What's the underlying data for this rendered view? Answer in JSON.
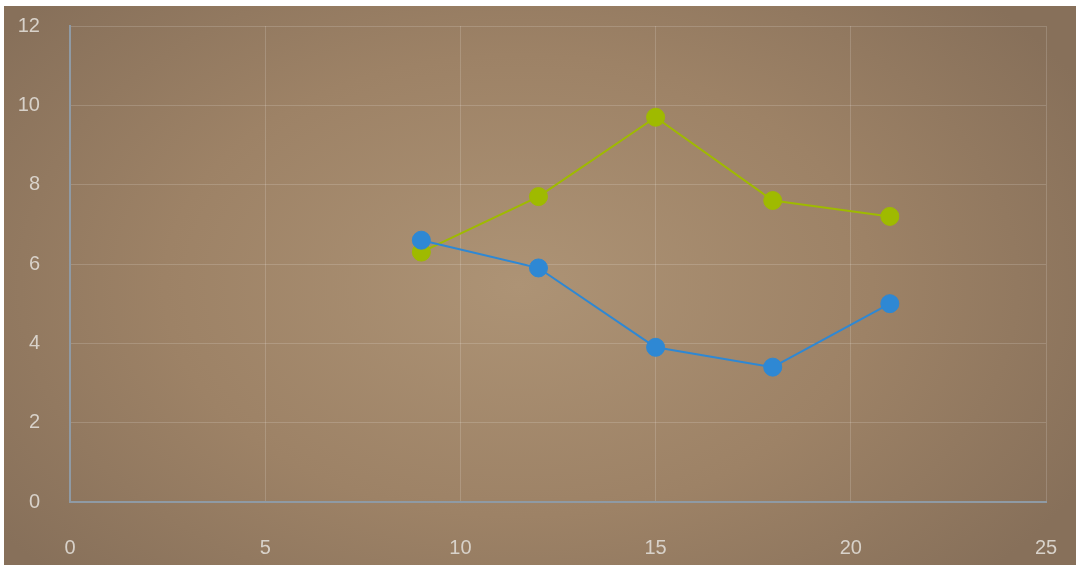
{
  "chart_data": {
    "type": "line",
    "x": [
      9,
      12,
      15,
      18,
      21
    ],
    "series": [
      {
        "color": "#9fba00",
        "values": [
          6.3,
          7.7,
          9.7,
          7.6,
          7.2
        ]
      },
      {
        "color": "#2e88d4",
        "values": [
          6.6,
          5.9,
          3.9,
          3.4,
          5.0
        ]
      }
    ],
    "xlim": [
      0,
      25
    ],
    "xticks": [
      0,
      5,
      10,
      15,
      20,
      25
    ],
    "ylim": [
      0,
      12
    ],
    "yticks": [
      0,
      2,
      4,
      6,
      8,
      10,
      12
    ],
    "grid": true,
    "legend": false,
    "marker": "circle",
    "line_style": "solid"
  }
}
